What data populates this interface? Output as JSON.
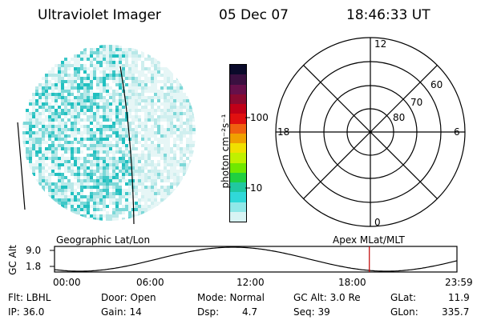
{
  "header": {
    "title": "Ultraviolet Imager",
    "date": "05 Dec 07",
    "time": "18:46:33 UT"
  },
  "colorbar": {
    "label": "photon cm⁻²s⁻¹",
    "ticks": [
      "100",
      "10"
    ],
    "colors": [
      "#0a0a2a",
      "#3a1040",
      "#66104a",
      "#8a0a30",
      "#c00018",
      "#e01010",
      "#f06010",
      "#f0a000",
      "#f0e000",
      "#c0f000",
      "#70e800",
      "#20d040",
      "#20c8a0",
      "#30d8d8",
      "#90e8e8",
      "#d8f4f4"
    ]
  },
  "polar_plot": {
    "lat_labels": [
      "60",
      "70",
      "80"
    ],
    "mlt_labels": {
      "top": "12",
      "bottom": "0",
      "left": "18",
      "right": "6"
    }
  },
  "orbit_panel": {
    "left_label": "Geographic Lat/Lon",
    "right_label": "Apex MLat/MLT",
    "y_axis_label": "GC Alt",
    "y_ticks": [
      "9.0",
      "1.8"
    ],
    "x_ticks": [
      "00:00",
      "06:00",
      "12:00",
      "18:00",
      "23:59"
    ],
    "marker_color": "#c00000",
    "marker_time_hours": 18.776
  },
  "info": {
    "flt": "Flt: LBHL",
    "ip": "IP: 36.0",
    "door": "Door: Open",
    "gain": "Gain: 14",
    "mode": "Mode: Normal",
    "dsp_label": "Dsp:",
    "dsp_value": "4.7",
    "gc_alt": "GC Alt: 3.0 Re",
    "seq": "Seq: 39",
    "glat_label": "GLat:",
    "glat_value": "11.9",
    "glon_label": "GLon:",
    "glon_value": "335.7"
  }
}
